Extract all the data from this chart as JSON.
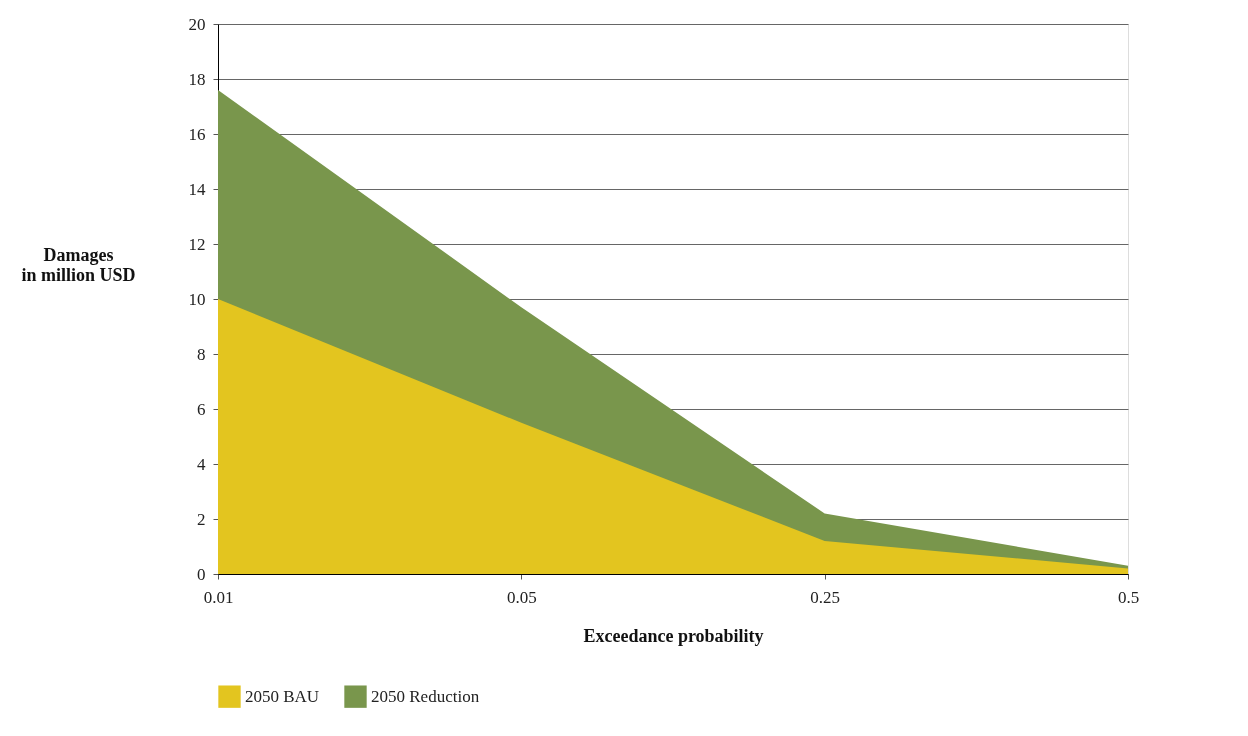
{
  "chart_data": {
    "type": "area",
    "xlabel": "Exceedance probability",
    "ylabel": "Damages\nin million USD",
    "categories": [
      "0.01",
      "0.05",
      "0.25",
      "0.5"
    ],
    "series": [
      {
        "name": "2050 BAU",
        "color": "#e3c51f",
        "values": [
          10,
          5.5,
          1.2,
          0.2
        ]
      },
      {
        "name": "2050 Reduction",
        "color": "#79964c",
        "values": [
          17.6,
          9.7,
          2.2,
          0.3
        ]
      }
    ],
    "ylim": [
      0,
      20
    ],
    "yticks": [
      0,
      2,
      4,
      6,
      8,
      10,
      12,
      14,
      16,
      18,
      20
    ],
    "grid": "y",
    "legend": "bottom"
  }
}
